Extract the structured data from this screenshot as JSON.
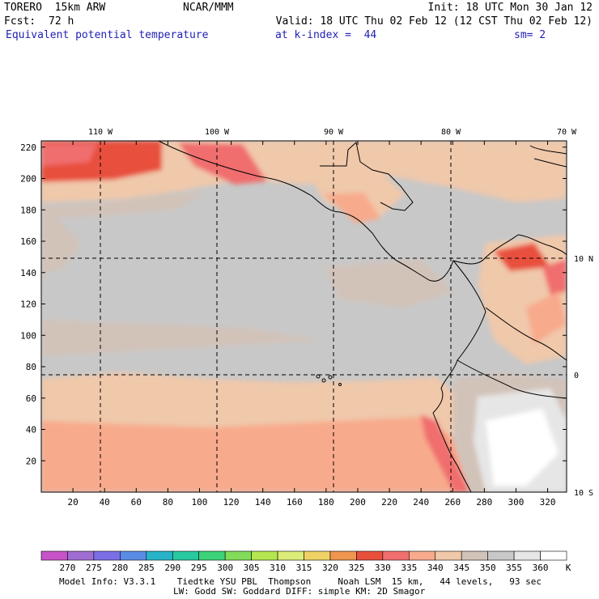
{
  "header": {
    "model": "TORERO  15km ARW",
    "org": "NCAR/MMM",
    "init": "Init: 18 UTC Mon 30 Jan 12",
    "fcst_label": "Fcst:",
    "fcst_value": "72 h",
    "valid": "Valid: 18 UTC Thu 02 Feb 12 (12 CST Thu 02 Feb 12)",
    "field": "Equivalent potential temperature",
    "level": "at k-index =  44",
    "smooth": "sm= 2"
  },
  "map": {
    "lon_labels": [
      "110 W",
      "100 W",
      "90 W",
      "80 W",
      "70 W"
    ],
    "lat_labels": [
      "10 N",
      "0",
      "10 S"
    ],
    "x_ticks": [
      "20",
      "40",
      "60",
      "80",
      "100",
      "120",
      "140",
      "160",
      "180",
      "200",
      "220",
      "240",
      "260",
      "280",
      "300",
      "320"
    ],
    "y_ticks": [
      "20",
      "40",
      "60",
      "80",
      "100",
      "120",
      "140",
      "160",
      "180",
      "200",
      "220"
    ],
    "x_range": [
      0,
      332
    ],
    "y_range": [
      0,
      224
    ]
  },
  "colorbar": {
    "labels": [
      "270",
      "275",
      "280",
      "285",
      "290",
      "295",
      "300",
      "305",
      "310",
      "315",
      "320",
      "325",
      "330",
      "335",
      "340",
      "345",
      "350",
      "355",
      "360"
    ],
    "unit": "K",
    "colors": [
      "#c852c8",
      "#a06ed2",
      "#7c6ee6",
      "#5a8ce6",
      "#28b4c8",
      "#28c8a0",
      "#3cd278",
      "#82dc5a",
      "#b4e650",
      "#dcec78",
      "#f0d264",
      "#f09650",
      "#e8503c",
      "#f06e6e",
      "#f8aa8c",
      "#f0c8aa",
      "#d2c3b9",
      "#c8c8c8",
      "#e6e6e6",
      "#ffffff"
    ]
  },
  "footer": {
    "line1": "Model Info: V3.3.1    Tiedtke YSU PBL  Thompson     Noah LSM  15 km,   44 levels,   93 sec",
    "line2": "LW: Godd SW: Goddard DIFF: simple KM: 2D Smagor"
  }
}
